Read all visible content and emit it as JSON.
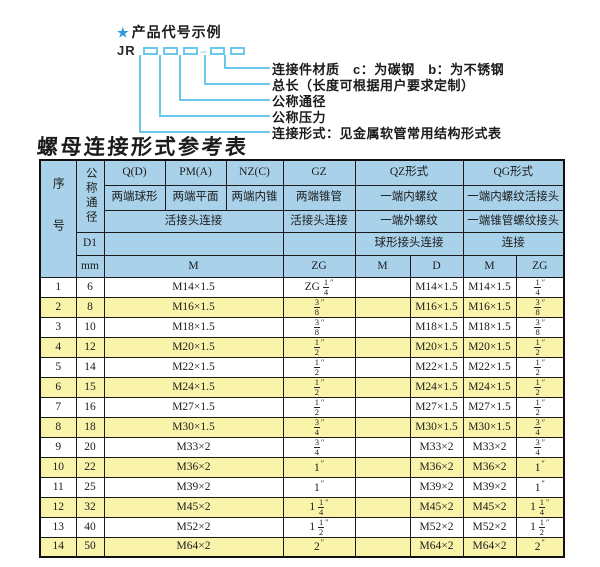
{
  "diagram": {
    "star_icon": "★",
    "title": "产品代号示例",
    "prefix": "JR",
    "dash": "–",
    "labels": [
      "连接件材质　c：为碳钢　b：为不锈钢",
      "总长（长度可根据用户要求定制）",
      "公称通径",
      "公称压力",
      "连接形式：见金属软管常用结构形式表"
    ]
  },
  "table_title": "螺母连接形式参考表",
  "colors": {
    "header_bg": "#a9d2ea",
    "stripe_yellow": "#faf3aa",
    "diagram_blue": "#6ac8ea",
    "star_blue": "#2e9bd6",
    "border": "#1b1b1b"
  },
  "table": {
    "header": {
      "row_col": "序号",
      "dn_col": "公称通径",
      "d1": "D1",
      "mm": "mm",
      "q": "Q(D)",
      "pm": "PM(A)",
      "nz": "NZ(C)",
      "gz": "GZ",
      "qz": "QZ形式",
      "qg": "QG形式",
      "q_desc": "两端球形",
      "pm_desc": "两端平面",
      "nz_desc": "两端内锥",
      "gz_desc": "两端锥管",
      "qz_desc1": "一端内螺纹",
      "qg_desc1": "一端内螺纹活接头",
      "union_conn": "活接头连接",
      "gz_conn": "活接头连接",
      "qz_desc2": "一端外螺纹",
      "qg_desc2": "一端锥管螺纹接头",
      "qz_conn": "球形接头连接",
      "qg_conn": "连接",
      "m_unit": "M",
      "zg_unit": "ZG",
      "qz_m_unit": "M",
      "qz_d_unit": "D",
      "qg_m_unit": "M",
      "qg_zg_unit": "ZG"
    },
    "rows": [
      {
        "no": "1",
        "mm": "6",
        "m": "M14×1.5",
        "zg": "ZG 1/4\"",
        "qz_m": "",
        "qz_d": "M14×1.5",
        "qg_m": "M14×1.5",
        "qg_zg": "1/4\""
      },
      {
        "no": "2",
        "mm": "8",
        "m": "M16×1.5",
        "zg": "3/8\"",
        "qz_m": "",
        "qz_d": "M16×1.5",
        "qg_m": "M16×1.5",
        "qg_zg": "3/8\""
      },
      {
        "no": "3",
        "mm": "10",
        "m": "M18×1.5",
        "zg": "3/8\"",
        "qz_m": "",
        "qz_d": "M18×1.5",
        "qg_m": "M18×1.5",
        "qg_zg": "3/8\""
      },
      {
        "no": "4",
        "mm": "12",
        "m": "M20×1.5",
        "zg": "1/2\"",
        "qz_m": "",
        "qz_d": "M20×1.5",
        "qg_m": "M20×1.5",
        "qg_zg": "1/2\""
      },
      {
        "no": "5",
        "mm": "14",
        "m": "M22×1.5",
        "zg": "1/2\"",
        "qz_m": "",
        "qz_d": "M22×1.5",
        "qg_m": "M22×1.5",
        "qg_zg": "1/2\""
      },
      {
        "no": "6",
        "mm": "15",
        "m": "M24×1.5",
        "zg": "1/2\"",
        "qz_m": "",
        "qz_d": "M24×1.5",
        "qg_m": "M24×1.5",
        "qg_zg": "1/2\""
      },
      {
        "no": "7",
        "mm": "16",
        "m": "M27×1.5",
        "zg": "1/2\"",
        "qz_m": "",
        "qz_d": "M27×1.5",
        "qg_m": "M27×1.5",
        "qg_zg": "1/2\""
      },
      {
        "no": "8",
        "mm": "18",
        "m": "M30×1.5",
        "zg": "3/4\"",
        "qz_m": "",
        "qz_d": "M30×1.5",
        "qg_m": "M30×1.5",
        "qg_zg": "3/4\""
      },
      {
        "no": "9",
        "mm": "20",
        "m": "M33×2",
        "zg": "3/4\"",
        "qz_m": "",
        "qz_d": "M33×2",
        "qg_m": "M33×2",
        "qg_zg": "3/4\""
      },
      {
        "no": "10",
        "mm": "22",
        "m": "M36×2",
        "zg": "1\"",
        "qz_m": "",
        "qz_d": "M36×2",
        "qg_m": "M36×2",
        "qg_zg": "1\""
      },
      {
        "no": "11",
        "mm": "25",
        "m": "M39×2",
        "zg": "1\"",
        "qz_m": "",
        "qz_d": "M39×2",
        "qg_m": "M39×2",
        "qg_zg": "1\""
      },
      {
        "no": "12",
        "mm": "32",
        "m": "M45×2",
        "zg": "1 1/4\"",
        "qz_m": "",
        "qz_d": "M45×2",
        "qg_m": "M45×2",
        "qg_zg": "1 1/4\""
      },
      {
        "no": "13",
        "mm": "40",
        "m": "M52×2",
        "zg": "1 1/2\"",
        "qz_m": "",
        "qz_d": "M52×2",
        "qg_m": "M52×2",
        "qg_zg": "1 1/2\""
      },
      {
        "no": "14",
        "mm": "50",
        "m": "M64×2",
        "zg": "2\"",
        "qz_m": "",
        "qz_d": "M64×2",
        "qg_m": "M64×2",
        "qg_zg": "2\""
      }
    ]
  }
}
